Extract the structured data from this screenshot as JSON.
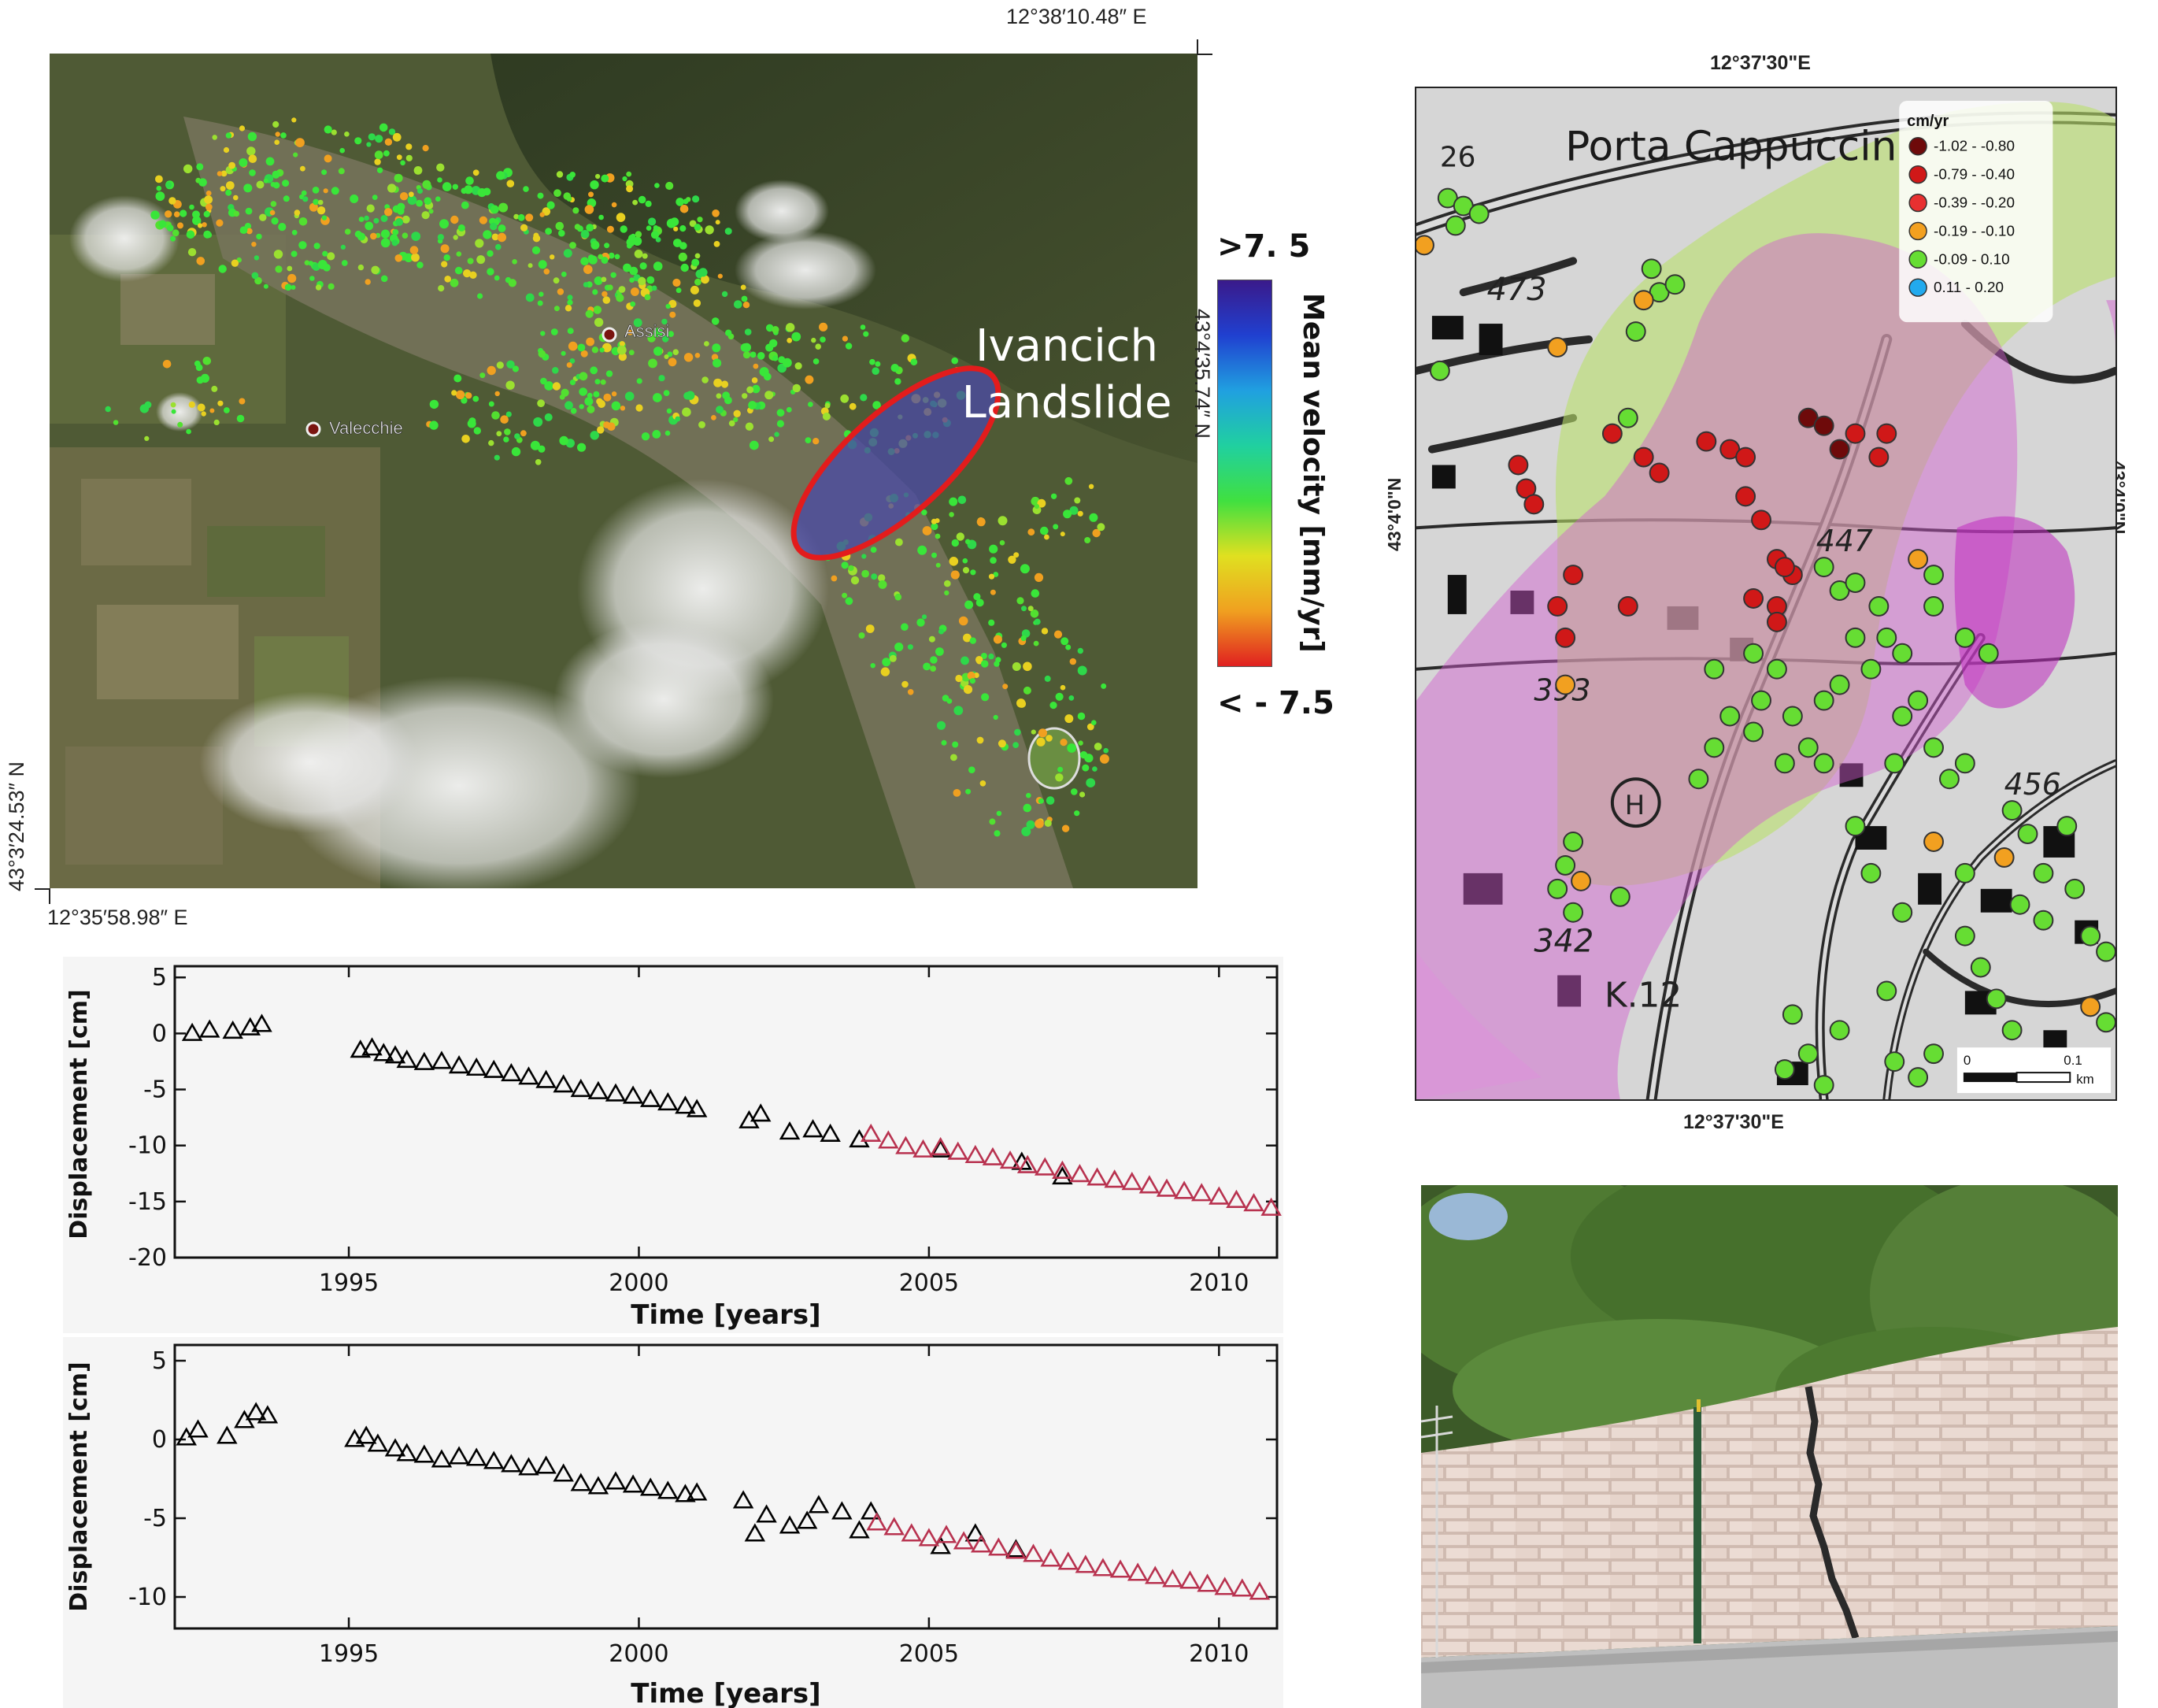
{
  "satellite": {
    "coord_top": "12°38′10.48″ E",
    "coord_right": "43°4′35.74″ N",
    "coord_left": "43°3′24.53″ N",
    "coord_bottom": "12°35′58.98″ E",
    "place_assisi": "Assisi",
    "place_valecchie": "Valecchie",
    "landslide_label_1": "Ivancich",
    "landslide_label_2": "Landslide"
  },
  "colorbar": {
    "max_label": ">7. 5",
    "min_label": "< - 7.5",
    "title": "Mean velocity [mm/yr]",
    "colors": [
      "#3a1a8a",
      "#2040d0",
      "#20a0e0",
      "#20d0a0",
      "#40e040",
      "#e0e020",
      "#f0a020",
      "#e02020"
    ]
  },
  "map": {
    "coord_top": "12°37'30\"E",
    "coord_bottom": "12°37'30\"E",
    "coord_left": "43°4'0\"N",
    "coord_right": "43°4'0\"N",
    "place_label": "Porta Cappuccin",
    "heights": [
      "473",
      "447",
      "393",
      "456",
      "342",
      "K.12",
      "26"
    ],
    "legend": {
      "unit": "cm/yr",
      "items": [
        {
          "label": "-1.02 - -0.80",
          "color": "#6e0a0a"
        },
        {
          "label": "-0.79 - -0.40",
          "color": "#d01818"
        },
        {
          "label": "-0.39 - -0.20",
          "color": "#e83030"
        },
        {
          "label": "-0.19 - -0.10",
          "color": "#f2a020"
        },
        {
          "label": "-0.09 - 0.10",
          "color": "#66dd33"
        },
        {
          "label": "0.11 - 0.20",
          "color": "#22aaee"
        }
      ]
    },
    "scalebar": {
      "start": "0",
      "end": "0.1",
      "unit": "km"
    }
  },
  "chart_data": [
    {
      "type": "scatter",
      "xlabel": "Time [years]",
      "ylabel": "Displacement [cm]",
      "xlim": [
        1992,
        2011
      ],
      "ylim": [
        -20,
        6
      ],
      "xticks": [
        1995,
        2000,
        2005,
        2010
      ],
      "yticks": [
        5,
        0,
        -5,
        -10,
        -15,
        -20
      ],
      "series": [
        {
          "color": "#000000",
          "x": [
            1992.3,
            1992.6,
            1993.0,
            1993.3,
            1993.5,
            1995.2,
            1995.4,
            1995.6,
            1995.8,
            1996.0,
            1996.3,
            1996.6,
            1996.9,
            1997.2,
            1997.5,
            1997.8,
            1998.1,
            1998.4,
            1998.7,
            1999.0,
            1999.3,
            1999.6,
            1999.9,
            2000.2,
            2000.5,
            2000.8,
            2001.0,
            2001.9,
            2002.1,
            2002.6,
            2003.0,
            2003.3,
            2003.8,
            2005.2,
            2006.6,
            2007.3
          ],
          "y": [
            0.0,
            0.3,
            0.2,
            0.5,
            0.8,
            -1.5,
            -1.3,
            -1.8,
            -2.0,
            -2.4,
            -2.6,
            -2.5,
            -2.9,
            -3.1,
            -3.3,
            -3.6,
            -3.9,
            -4.2,
            -4.6,
            -5.0,
            -5.2,
            -5.4,
            -5.6,
            -5.9,
            -6.2,
            -6.5,
            -6.8,
            -7.8,
            -7.2,
            -8.8,
            -8.6,
            -9.0,
            -9.5,
            -10.4,
            -11.5,
            -12.8
          ]
        },
        {
          "color": "#b8324f",
          "x": [
            2004.0,
            2004.3,
            2004.6,
            2004.9,
            2005.2,
            2005.5,
            2005.8,
            2006.1,
            2006.4,
            2006.7,
            2007.0,
            2007.3,
            2007.6,
            2007.9,
            2008.2,
            2008.5,
            2008.8,
            2009.1,
            2009.4,
            2009.7,
            2010.0,
            2010.3,
            2010.6,
            2010.9
          ],
          "y": [
            -9.0,
            -9.6,
            -10.1,
            -10.4,
            -10.2,
            -10.6,
            -10.9,
            -11.1,
            -11.4,
            -11.8,
            -12.0,
            -12.3,
            -12.6,
            -12.9,
            -13.1,
            -13.3,
            -13.6,
            -13.9,
            -14.1,
            -14.3,
            -14.6,
            -14.9,
            -15.2,
            -15.6
          ]
        }
      ]
    },
    {
      "type": "scatter",
      "xlabel": "Time [years]",
      "ylabel": "Displacement [cm]",
      "xlim": [
        1992,
        2011
      ],
      "ylim": [
        -12,
        6
      ],
      "xticks": [
        1995,
        2000,
        2005,
        2010
      ],
      "yticks": [
        5,
        0,
        -5,
        -10
      ],
      "series": [
        {
          "color": "#000000",
          "x": [
            1992.2,
            1992.4,
            1992.9,
            1993.2,
            1993.4,
            1993.6,
            1995.1,
            1995.3,
            1995.5,
            1995.8,
            1996.0,
            1996.3,
            1996.6,
            1996.9,
            1997.2,
            1997.5,
            1997.8,
            1998.1,
            1998.4,
            1998.7,
            1999.0,
            1999.3,
            1999.6,
            1999.9,
            2000.2,
            2000.5,
            2000.8,
            2001.0,
            2001.8,
            2002.0,
            2002.2,
            2002.6,
            2002.9,
            2003.1,
            2003.5,
            2003.8,
            2004.0,
            2005.2,
            2005.8,
            2006.5
          ],
          "y": [
            0.1,
            0.6,
            0.2,
            1.2,
            1.7,
            1.5,
            0.0,
            0.2,
            -0.3,
            -0.6,
            -0.9,
            -1.0,
            -1.3,
            -1.1,
            -1.2,
            -1.4,
            -1.6,
            -1.8,
            -1.7,
            -2.2,
            -2.8,
            -3.0,
            -2.7,
            -2.9,
            -3.1,
            -3.3,
            -3.5,
            -3.4,
            -3.9,
            -6.0,
            -4.8,
            -5.5,
            -5.2,
            -4.2,
            -4.6,
            -5.8,
            -4.6,
            -6.8,
            -6.0,
            -7.0
          ]
        },
        {
          "color": "#b8324f",
          "x": [
            2004.1,
            2004.4,
            2004.7,
            2005.0,
            2005.3,
            2005.6,
            2005.9,
            2006.2,
            2006.5,
            2006.8,
            2007.1,
            2007.4,
            2007.7,
            2008.0,
            2008.3,
            2008.6,
            2008.9,
            2009.2,
            2009.5,
            2009.8,
            2010.1,
            2010.4,
            2010.7
          ],
          "y": [
            -5.3,
            -5.6,
            -6.0,
            -6.3,
            -6.1,
            -6.5,
            -6.7,
            -6.9,
            -7.1,
            -7.3,
            -7.6,
            -7.8,
            -8.0,
            -8.2,
            -8.3,
            -8.5,
            -8.7,
            -8.9,
            -9.0,
            -9.2,
            -9.4,
            -9.5,
            -9.7
          ]
        }
      ]
    }
  ]
}
